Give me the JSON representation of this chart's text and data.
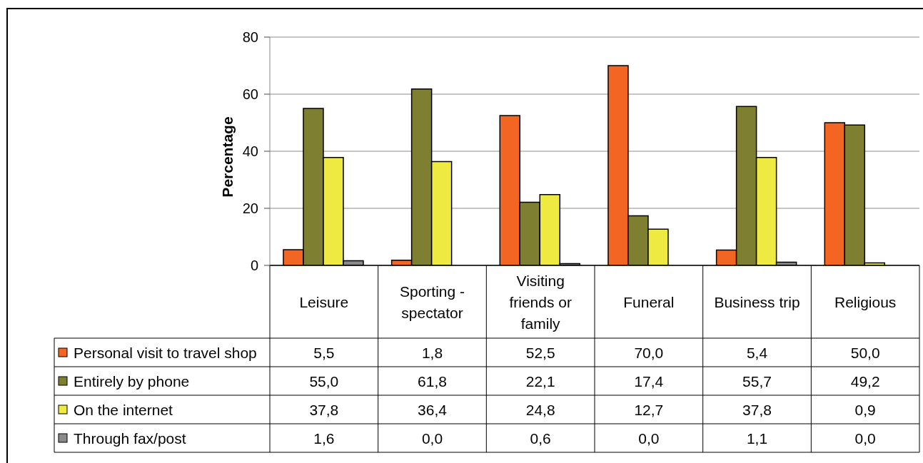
{
  "chart_data": {
    "type": "bar",
    "ylabel": "Percentage",
    "categories": [
      "Leisure",
      "Sporting - spectator",
      "Visiting friends or family",
      "Funeral",
      "Business trip",
      "Religious"
    ],
    "series": [
      {
        "name": "Personal visit to travel shop",
        "color": "#f26522",
        "values": [
          5.5,
          1.8,
          52.5,
          70.0,
          5.4,
          50.0
        ],
        "value_labels": [
          "5,5",
          "1,8",
          "52,5",
          "70,0",
          "5,4",
          "50,0"
        ]
      },
      {
        "name": "Entirely by phone",
        "color": "#7f7f31",
        "values": [
          55.0,
          61.8,
          22.1,
          17.4,
          55.7,
          49.2
        ],
        "value_labels": [
          "55,0",
          "61,8",
          "22,1",
          "17,4",
          "55,7",
          "49,2"
        ]
      },
      {
        "name": "On the internet",
        "color": "#efea41",
        "values": [
          37.8,
          36.4,
          24.8,
          12.7,
          37.8,
          0.9
        ],
        "value_labels": [
          "37,8",
          "36,4",
          "24,8",
          "12,7",
          "37,8",
          "0,9"
        ]
      },
      {
        "name": "Through fax/post",
        "color": "#8a8a8a",
        "values": [
          1.6,
          0.0,
          0.6,
          0.0,
          1.1,
          0.0
        ],
        "value_labels": [
          "1,6",
          "0,0",
          "0,6",
          "0,0",
          "1,1",
          "0,0"
        ]
      }
    ],
    "ylim": [
      0,
      80
    ],
    "yticks": [
      0,
      20,
      40,
      60,
      80
    ],
    "grid": "y",
    "legend": "bottom left"
  }
}
